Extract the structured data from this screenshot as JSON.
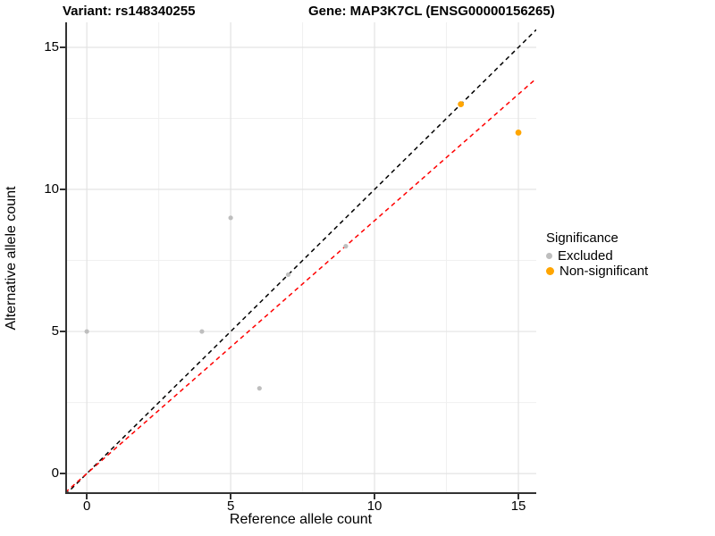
{
  "chart_data": {
    "type": "scatter",
    "titles": [
      "Variant: rs148340255",
      "Gene: MAP3K7CL (ENSG00000156265)"
    ],
    "xlabel": "Reference allele count",
    "ylabel": "Alternative allele count",
    "xlim": [
      -0.75,
      15.62
    ],
    "ylim": [
      -0.72,
      15.88
    ],
    "xticks": [
      0,
      5,
      10,
      15
    ],
    "yticks": [
      0,
      5,
      10,
      15
    ],
    "minor_xticks": [
      2.5,
      7.5,
      12.5
    ],
    "minor_yticks": [
      2.5,
      7.5,
      12.5
    ],
    "grid": true,
    "colors": {
      "excluded": "#BEBEBE",
      "non_significant": "#FFA500",
      "identity_line": "#000000",
      "fit_line": "#FF0000",
      "major_grid": "#E3E3E3",
      "minor_grid": "#F0F0F0",
      "axis": "#333333"
    },
    "series": [
      {
        "name": "Excluded",
        "color": "#BEBEBE",
        "marker_radius": 2.6,
        "points": [
          [
            0,
            5
          ],
          [
            4,
            5
          ],
          [
            5,
            9
          ],
          [
            6,
            3
          ],
          [
            7,
            7
          ],
          [
            9,
            8
          ]
        ]
      },
      {
        "name": "Non-significant",
        "color": "#FFA500",
        "marker_radius": 3.4,
        "points": [
          [
            13,
            13
          ],
          [
            15,
            12
          ]
        ]
      }
    ],
    "ref_lines": [
      {
        "name": "identity-line",
        "style": "dashed",
        "color": "#000000",
        "slope": 1.0,
        "intercept": 0
      },
      {
        "name": "fit-line",
        "style": "dashed",
        "color": "#FF0000",
        "slope": 0.89,
        "intercept": 0
      }
    ],
    "legend": {
      "title": "Significance",
      "position": "right",
      "entries": [
        {
          "label": "Excluded",
          "color": "#BEBEBE"
        },
        {
          "label": "Non-significant",
          "color": "#FFA500"
        }
      ]
    }
  }
}
